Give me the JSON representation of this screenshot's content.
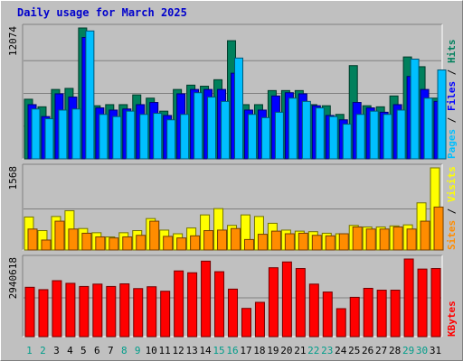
{
  "chart_data": [
    {
      "type": "bar",
      "title": "Daily usage for March 2025",
      "categories": [
        "1",
        "2",
        "3",
        "4",
        "5",
        "6",
        "7",
        "8",
        "9",
        "10",
        "11",
        "12",
        "13",
        "14",
        "15",
        "16",
        "17",
        "18",
        "19",
        "20",
        "21",
        "22",
        "23",
        "24",
        "25",
        "26",
        "27",
        "28",
        "29",
        "30",
        "31"
      ],
      "weekend_days": [
        "1",
        "2",
        "8",
        "9",
        "15",
        "16",
        "22",
        "23",
        "29",
        "30"
      ],
      "ymax_label": "12074",
      "ylabel_parts": [
        "Pages",
        "Files",
        "Hits"
      ],
      "series": [
        {
          "name": "Hits",
          "color": "#00805c",
          "values": [
            5500,
            4800,
            6400,
            6500,
            12074,
            4900,
            5000,
            5000,
            5900,
            5600,
            4400,
            6400,
            6800,
            6700,
            7300,
            10900,
            5000,
            5000,
            6300,
            6300,
            6300,
            5000,
            4900,
            4100,
            8600,
            4900,
            4800,
            5800,
            9400,
            8500,
            5600
          ]
        },
        {
          "name": "Files",
          "color": "#0000ff",
          "values": [
            5000,
            3900,
            6000,
            5700,
            11200,
            4700,
            4500,
            4600,
            5000,
            5200,
            4000,
            6000,
            6400,
            6400,
            6400,
            7900,
            4500,
            4500,
            5800,
            6100,
            6000,
            4900,
            4000,
            3600,
            5200,
            4700,
            4300,
            5000,
            7600,
            6400,
            5300
          ]
        },
        {
          "name": "Pages",
          "color": "#00bfff",
          "values": [
            4600,
            3700,
            4500,
            4600,
            11800,
            4100,
            3900,
            4400,
            4100,
            4200,
            3600,
            4100,
            6100,
            5700,
            5300,
            9300,
            4100,
            3800,
            4300,
            5600,
            5300,
            4700,
            3900,
            3200,
            4100,
            4400,
            4100,
            4500,
            9200,
            5600,
            8200
          ]
        }
      ]
    },
    {
      "type": "bar",
      "categories": [
        "1",
        "2",
        "3",
        "4",
        "5",
        "6",
        "7",
        "8",
        "9",
        "10",
        "11",
        "12",
        "13",
        "14",
        "15",
        "16",
        "17",
        "18",
        "19",
        "20",
        "21",
        "22",
        "23",
        "24",
        "25",
        "26",
        "27",
        "28",
        "29",
        "30",
        "31"
      ],
      "ymax_label": "1568",
      "ylabel_parts": [
        "Sites",
        "Visits"
      ],
      "series": [
        {
          "name": "Visits",
          "color": "#ffff00",
          "values": [
            630,
            370,
            640,
            750,
            410,
            330,
            250,
            330,
            370,
            600,
            380,
            310,
            420,
            670,
            790,
            470,
            670,
            640,
            510,
            380,
            360,
            350,
            320,
            310,
            470,
            440,
            440,
            460,
            480,
            900,
            1568
          ]
        },
        {
          "name": "Sites",
          "color": "#ff8c00",
          "values": [
            400,
            190,
            550,
            400,
            320,
            250,
            230,
            250,
            280,
            550,
            260,
            230,
            270,
            370,
            380,
            410,
            200,
            300,
            360,
            310,
            320,
            280,
            270,
            310,
            440,
            400,
            400,
            440,
            400,
            550,
            820
          ]
        }
      ]
    },
    {
      "type": "bar",
      "categories": [
        "1",
        "2",
        "3",
        "4",
        "5",
        "6",
        "7",
        "8",
        "9",
        "10",
        "11",
        "12",
        "13",
        "14",
        "15",
        "16",
        "17",
        "18",
        "19",
        "20",
        "21",
        "22",
        "23",
        "24",
        "25",
        "26",
        "27",
        "28",
        "29",
        "30",
        "31"
      ],
      "ymax_label": "2940618",
      "ylabel_parts": [
        "KBytes"
      ],
      "series": [
        {
          "name": "KBytes",
          "color": "#ff0000",
          "values": [
            1870000,
            1780000,
            2120000,
            2020000,
            1900000,
            1990000,
            1900000,
            2000000,
            1820000,
            1890000,
            1720000,
            2490000,
            2420000,
            2860000,
            2460000,
            1800000,
            1070000,
            1300000,
            2610000,
            2830000,
            2580000,
            1990000,
            1690000,
            1060000,
            1490000,
            1830000,
            1760000,
            1760000,
            2940618,
            2560000,
            2580000
          ]
        }
      ]
    }
  ],
  "colors": {
    "panel": "#c0c0c0",
    "grid": "#808080",
    "weekday_label": "#00a000",
    "weekend_label": "#009d8a",
    "title": "#0000cc"
  }
}
